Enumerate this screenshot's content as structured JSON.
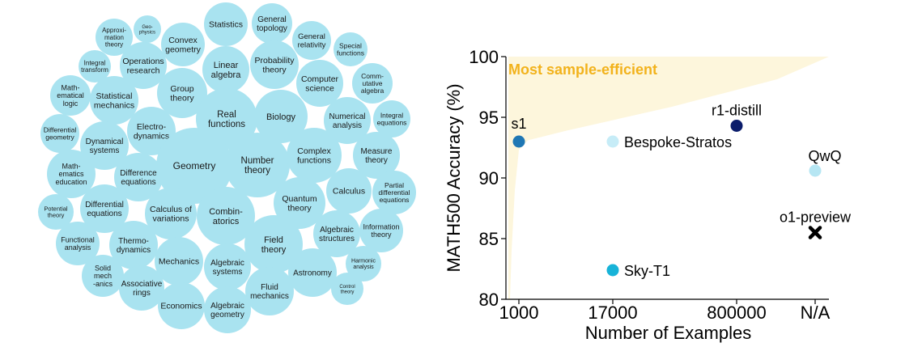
{
  "chart_data": [
    {
      "type": "bubble-cloud",
      "title": "",
      "items": [
        {
          "lines": [
            "Statistics"
          ]
        },
        {
          "lines": [
            "General",
            "topology"
          ]
        },
        {
          "lines": [
            "Approxi-",
            "mation",
            "theory"
          ]
        },
        {
          "lines": [
            "Geo-",
            "physics"
          ]
        },
        {
          "lines": [
            "Convex",
            "geometry"
          ]
        },
        {
          "lines": [
            "General",
            "relativity"
          ]
        },
        {
          "lines": [
            "Special",
            "functions"
          ]
        },
        {
          "lines": [
            "Integral",
            "transform"
          ]
        },
        {
          "lines": [
            "Operations",
            "research"
          ]
        },
        {
          "lines": [
            "Linear",
            "algebra"
          ]
        },
        {
          "lines": [
            "Probability",
            "theory"
          ]
        },
        {
          "lines": [
            "Computer",
            "science"
          ]
        },
        {
          "lines": [
            "Comm-",
            "utative",
            "algebra"
          ]
        },
        {
          "lines": [
            "Math-",
            "ematical",
            "logic"
          ]
        },
        {
          "lines": [
            "Statistical",
            "mechanics"
          ]
        },
        {
          "lines": [
            "Group",
            "theory"
          ]
        },
        {
          "lines": [
            "Real",
            "functions"
          ]
        },
        {
          "lines": [
            "Biology"
          ]
        },
        {
          "lines": [
            "Numerical",
            "analysis"
          ]
        },
        {
          "lines": [
            "Integral",
            "equations"
          ]
        },
        {
          "lines": [
            "Differential",
            "geometry"
          ]
        },
        {
          "lines": [
            "Dynamical",
            "systems"
          ]
        },
        {
          "lines": [
            "Electro-",
            "dynamics"
          ]
        },
        {
          "lines": [
            "Geometry"
          ]
        },
        {
          "lines": [
            "Number",
            "theory"
          ]
        },
        {
          "lines": [
            "Complex",
            "functions"
          ]
        },
        {
          "lines": [
            "Measure",
            "theory"
          ]
        },
        {
          "lines": [
            "Math-",
            "ematics",
            "education"
          ]
        },
        {
          "lines": [
            "Difference",
            "equations"
          ]
        },
        {
          "lines": [
            "Calculus"
          ]
        },
        {
          "lines": [
            "Partial",
            "differential",
            "equations"
          ]
        },
        {
          "lines": [
            "Potential",
            "theory"
          ]
        },
        {
          "lines": [
            "Differential",
            "equations"
          ]
        },
        {
          "lines": [
            "Calculus of",
            "variations"
          ]
        },
        {
          "lines": [
            "Combin-",
            "atorics"
          ]
        },
        {
          "lines": [
            "Quantum",
            "theory"
          ]
        },
        {
          "lines": [
            "Information",
            "theory"
          ]
        },
        {
          "lines": [
            "Functional",
            "analysis"
          ]
        },
        {
          "lines": [
            "Thermo-",
            "dynamics"
          ]
        },
        {
          "lines": [
            "Field",
            "theory"
          ]
        },
        {
          "lines": [
            "Algebraic",
            "structures"
          ]
        },
        {
          "lines": [
            "Solid",
            "mech",
            "-anics"
          ]
        },
        {
          "lines": [
            "Mechanics"
          ]
        },
        {
          "lines": [
            "Algebraic",
            "systems"
          ]
        },
        {
          "lines": [
            "Harmonic",
            "analysis"
          ]
        },
        {
          "lines": [
            "Associative",
            "rings"
          ]
        },
        {
          "lines": [
            "Astronomy"
          ]
        },
        {
          "lines": [
            "Fluid",
            "mechanics"
          ]
        },
        {
          "lines": [
            "Control",
            "theory"
          ]
        },
        {
          "lines": [
            "Economics"
          ]
        },
        {
          "lines": [
            "Algebraic",
            "geometry"
          ]
        }
      ]
    },
    {
      "type": "scatter",
      "title": "",
      "xlabel": "Number of Examples",
      "ylabel": "MATH500 Accuracy (%)",
      "x_categories": [
        "1000",
        "17000",
        "800000",
        "N/A"
      ],
      "ylim": [
        80,
        100
      ],
      "yticks": [
        80,
        85,
        90,
        95,
        100
      ],
      "region_label": "Most sample-efficient",
      "points": [
        {
          "name": "s1",
          "x": "1000",
          "y": 93.0,
          "marker": "circle",
          "color": "#1f77b4"
        },
        {
          "name": "Bespoke-Stratos",
          "x": "17000",
          "y": 93.0,
          "marker": "circle",
          "color": "#c6ecf7"
        },
        {
          "name": "Sky-T1",
          "x": "17000",
          "y": 82.4,
          "marker": "circle",
          "color": "#17b3d8"
        },
        {
          "name": "r1-distill",
          "x": "800000",
          "y": 94.3,
          "marker": "circle",
          "color": "#0b1d6b"
        },
        {
          "name": "QwQ",
          "x": "N/A",
          "y": 90.6,
          "marker": "circle",
          "color": "#b6e6f3"
        },
        {
          "name": "o1-preview",
          "x": "N/A",
          "y": 85.5,
          "marker": "x",
          "color": "#000000"
        }
      ],
      "colors": {
        "region_fill": "#fdf6dc",
        "region_label": "#f2b21b"
      }
    }
  ]
}
